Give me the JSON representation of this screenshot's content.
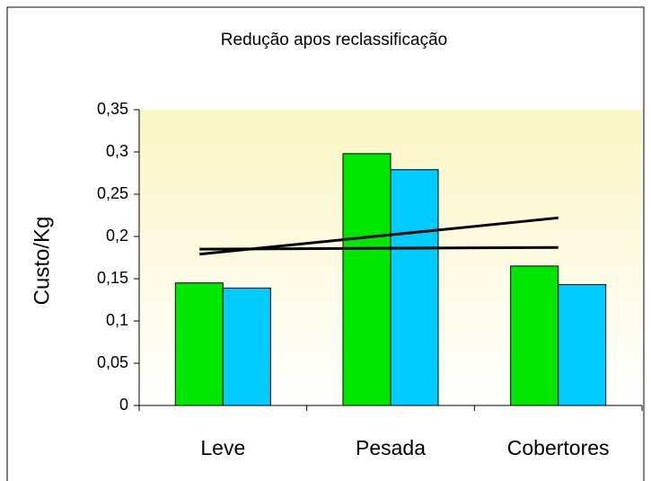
{
  "chart_data": {
    "type": "bar",
    "title": "Redução apos reclassificação",
    "y_label": "Custo/Kg",
    "categories": [
      "Leve",
      "Pesada",
      "Cobertores"
    ],
    "series": [
      {
        "color": "#00e600",
        "values": [
          0.145,
          0.298,
          0.165
        ]
      },
      {
        "color": "#00ccff",
        "values": [
          0.139,
          0.279,
          0.143
        ]
      }
    ],
    "trendlines": [
      {
        "color": "#000000",
        "values": [
          0.185,
          0.187
        ]
      },
      {
        "color": "#000000",
        "values": [
          0.179,
          0.222
        ]
      }
    ],
    "ylim": [
      0,
      0.35
    ],
    "yticks": [
      0,
      {
        "value": 0.05,
        "label": "0,05"
      },
      {
        "value": 0.1,
        "label": "0,1"
      },
      {
        "value": 0.15,
        "label": "0,15"
      },
      {
        "value": 0.2,
        "label": "0,2"
      },
      {
        "value": 0.25,
        "label": "0,25"
      },
      {
        "value": 0.3,
        "label": "0,3"
      },
      {
        "value": 0.35,
        "label": "0,35"
      }
    ],
    "grid": false
  }
}
